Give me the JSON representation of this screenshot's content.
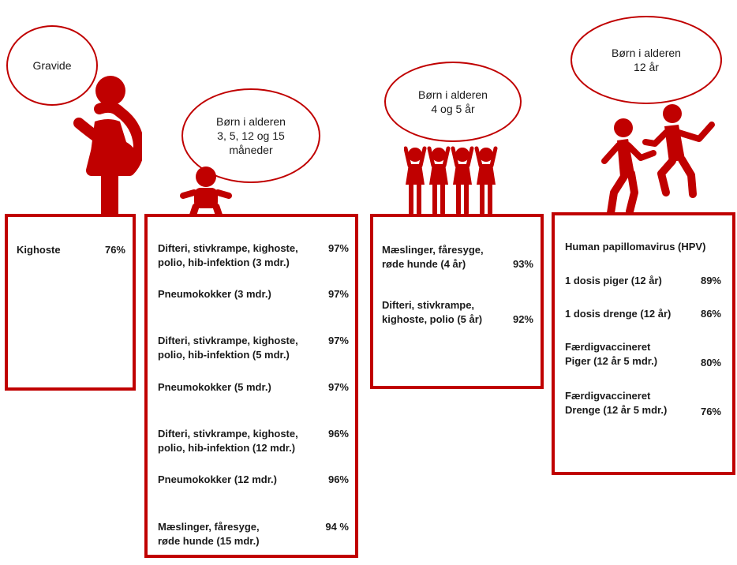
{
  "colors": {
    "accent": "#c00000"
  },
  "groups": [
    {
      "bubble": "Gravide",
      "icon": "pregnant-woman-icon",
      "rows": [
        {
          "label": "Kighoste",
          "pct": "76%"
        }
      ]
    },
    {
      "bubble": "Børn i alderen\n3, 5, 12 og 15\nmåneder",
      "icon": "baby-icon",
      "rows": [
        {
          "label": "Difteri, stivkrampe, kighoste,\npolio, hib-infektion (3 mdr.)",
          "pct": "97%"
        },
        {
          "label": "Pneumokokker (3 mdr.)",
          "pct": "97%"
        },
        {
          "label": "Difteri, stivkrampe, kighoste,\npolio, hib-infektion  (5 mdr.)",
          "pct": "97%"
        },
        {
          "label": "Pneumokokker (5 mdr.)",
          "pct": "97%"
        },
        {
          "label": "Difteri, stivkrampe, kighoste,\npolio, hib-infektion (12 mdr.)",
          "pct": "96%"
        },
        {
          "label": "Pneumokokker (12 mdr.)",
          "pct": "96%"
        },
        {
          "label": "Mæslinger, fåresyge,\nrøde hunde (15 mdr.)",
          "pct": "94 %"
        }
      ]
    },
    {
      "bubble": "Børn i alderen\n4 og 5 år",
      "icon": "children-group-icon",
      "rows": [
        {
          "label": "Mæslinger, fåresyge,\nrøde hunde (4 år)",
          "pct": "93%"
        },
        {
          "label": "Difteri, stivkrampe,\nkighoste, polio (5 år)",
          "pct": "92%"
        }
      ]
    },
    {
      "bubble": "Børn i alderen\n12 år",
      "icon": "teenagers-icon",
      "rows": [
        {
          "label": "Human papillomavirus (HPV)",
          "pct": ""
        },
        {
          "label": "1 dosis piger (12 år)",
          "pct": "89%"
        },
        {
          "label": "1 dosis drenge (12 år)",
          "pct": "86%"
        },
        {
          "label": "Færdigvaccineret\nPiger (12 år 5 mdr.)",
          "pct": "80%"
        },
        {
          "label": "Færdigvaccineret\nDrenge (12 år 5 mdr.)",
          "pct": "76%"
        }
      ]
    }
  ]
}
